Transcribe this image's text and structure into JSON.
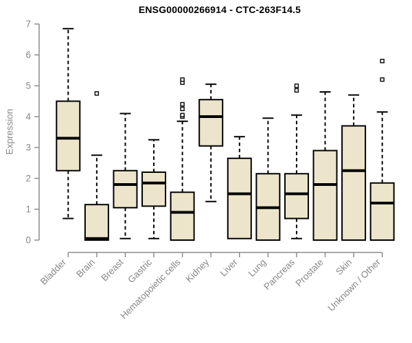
{
  "chart_data": {
    "type": "boxplot",
    "title": "ENSG00000266914 - CTC-263F14.5",
    "ylabel": "Expression",
    "xlabel": "",
    "ylim": [
      0,
      7
    ],
    "yticks": [
      0,
      1,
      2,
      3,
      4,
      5,
      6,
      7
    ],
    "grid": false,
    "legend": "none",
    "colors": {
      "box_fill": "#ece5cb",
      "box_stroke": "#000000",
      "median": "#000000",
      "whisker": "#000000",
      "axis": "#8c8c8c",
      "tick_label": "#878787",
      "title": "#000000",
      "background": "#ffffff"
    },
    "categories": [
      "Bladder",
      "Brain",
      "Breast",
      "Gastric",
      "Hematopoietic cells",
      "Kidney",
      "Liver",
      "Lung",
      "Pancreas",
      "Prostate",
      "Skin",
      "Unknown / Other"
    ],
    "series": [
      {
        "category": "Bladder",
        "whisker_low": 0.7,
        "q1": 2.25,
        "median": 3.3,
        "q3": 4.5,
        "whisker_high": 6.85,
        "outliers": []
      },
      {
        "category": "Brain",
        "whisker_low": 0.0,
        "q1": 0.0,
        "median": 0.05,
        "q3": 1.15,
        "whisker_high": 2.75,
        "outliers": [
          4.75
        ]
      },
      {
        "category": "Breast",
        "whisker_low": 0.05,
        "q1": 1.05,
        "median": 1.8,
        "q3": 2.25,
        "whisker_high": 4.1,
        "outliers": []
      },
      {
        "category": "Gastric",
        "whisker_low": 0.05,
        "q1": 1.1,
        "median": 1.85,
        "q3": 2.2,
        "whisker_high": 3.25,
        "outliers": []
      },
      {
        "category": "Hematopoietic cells",
        "whisker_low": 0.0,
        "q1": 0.0,
        "median": 0.9,
        "q3": 1.55,
        "whisker_high": 3.85,
        "outliers": [
          4.0,
          4.05,
          4.25,
          4.4,
          5.1,
          5.2
        ]
      },
      {
        "category": "Kidney",
        "whisker_low": 1.25,
        "q1": 3.05,
        "median": 4.0,
        "q3": 4.55,
        "whisker_high": 5.05,
        "outliers": []
      },
      {
        "category": "Liver",
        "whisker_low": 0.05,
        "q1": 0.05,
        "median": 1.5,
        "q3": 2.65,
        "whisker_high": 3.35,
        "outliers": []
      },
      {
        "category": "Lung",
        "whisker_low": 0.0,
        "q1": 0.0,
        "median": 1.05,
        "q3": 2.15,
        "whisker_high": 3.95,
        "outliers": []
      },
      {
        "category": "Pancreas",
        "whisker_low": 0.05,
        "q1": 0.7,
        "median": 1.5,
        "q3": 2.15,
        "whisker_high": 4.05,
        "outliers": [
          4.85,
          5.0
        ]
      },
      {
        "category": "Prostate",
        "whisker_low": 0.0,
        "q1": 0.0,
        "median": 1.8,
        "q3": 2.9,
        "whisker_high": 4.8,
        "outliers": []
      },
      {
        "category": "Skin",
        "whisker_low": 0.0,
        "q1": 0.0,
        "median": 2.25,
        "q3": 3.7,
        "whisker_high": 4.7,
        "outliers": []
      },
      {
        "category": "Unknown / Other",
        "whisker_low": 0.0,
        "q1": 0.0,
        "median": 1.2,
        "q3": 1.85,
        "whisker_high": 4.15,
        "outliers": [
          5.2,
          5.8
        ]
      }
    ]
  }
}
